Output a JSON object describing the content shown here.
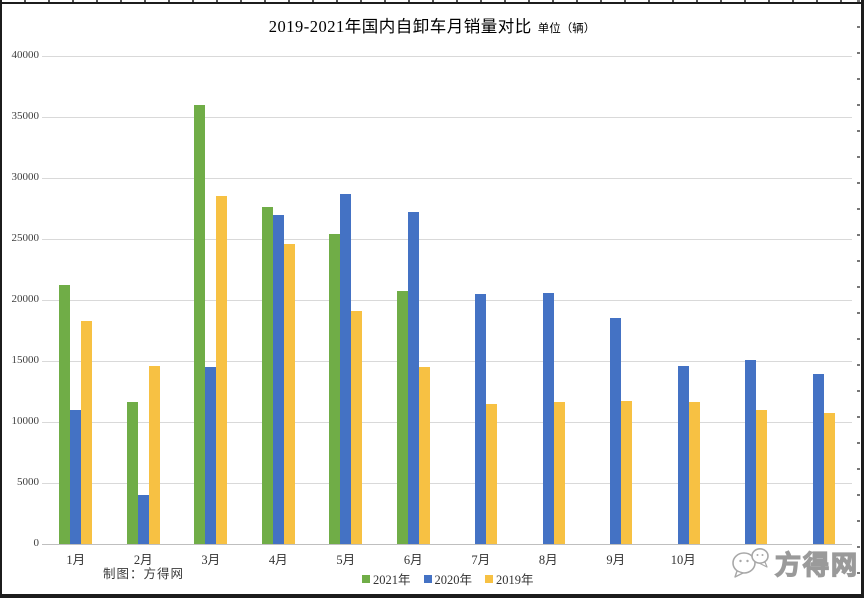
{
  "title": {
    "text": "2019-2021年国内自卸车月销量对比",
    "unit": "单位（辆）"
  },
  "credit": "制图：方得网",
  "watermark": {
    "text": "方得网",
    "logo": "chat-bubbles-icon"
  },
  "chart_data": {
    "type": "bar",
    "title": "2019-2021年国内自卸车月销量对比",
    "unit_label": "单位（辆）",
    "categories": [
      "1月",
      "2月",
      "3月",
      "4月",
      "5月",
      "6月",
      "7月",
      "8月",
      "9月",
      "10月",
      "11月",
      "12月"
    ],
    "visible_category_labels": [
      "1月",
      "2月",
      "3月",
      "4月",
      "5月",
      "6月",
      "7月",
      "8月",
      "9月",
      "10月"
    ],
    "series": [
      {
        "name": "2021年",
        "color": "#70AD47",
        "values": [
          21200,
          11600,
          36000,
          27600,
          25400,
          20700,
          null,
          null,
          null,
          null,
          null,
          null
        ]
      },
      {
        "name": "2020年",
        "color": "#4472C4",
        "values": [
          11000,
          4000,
          14500,
          27000,
          28700,
          27200,
          20500,
          20600,
          18500,
          14600,
          15100,
          13900
        ]
      },
      {
        "name": "2019年",
        "color": "#F7C143",
        "values": [
          18300,
          14600,
          28500,
          24600,
          19100,
          14500,
          11500,
          11600,
          11700,
          11600,
          11000,
          10700
        ]
      }
    ],
    "ylim": [
      0,
      40000
    ],
    "ytick_step": 5000,
    "yticks": [
      40000,
      35000,
      30000,
      25000,
      20000,
      15000,
      10000,
      5000,
      0
    ],
    "grid": true,
    "gridline_color": "#d9d9d9",
    "axis_line_color": "#bfbfbf",
    "legend_position": "bottom"
  }
}
